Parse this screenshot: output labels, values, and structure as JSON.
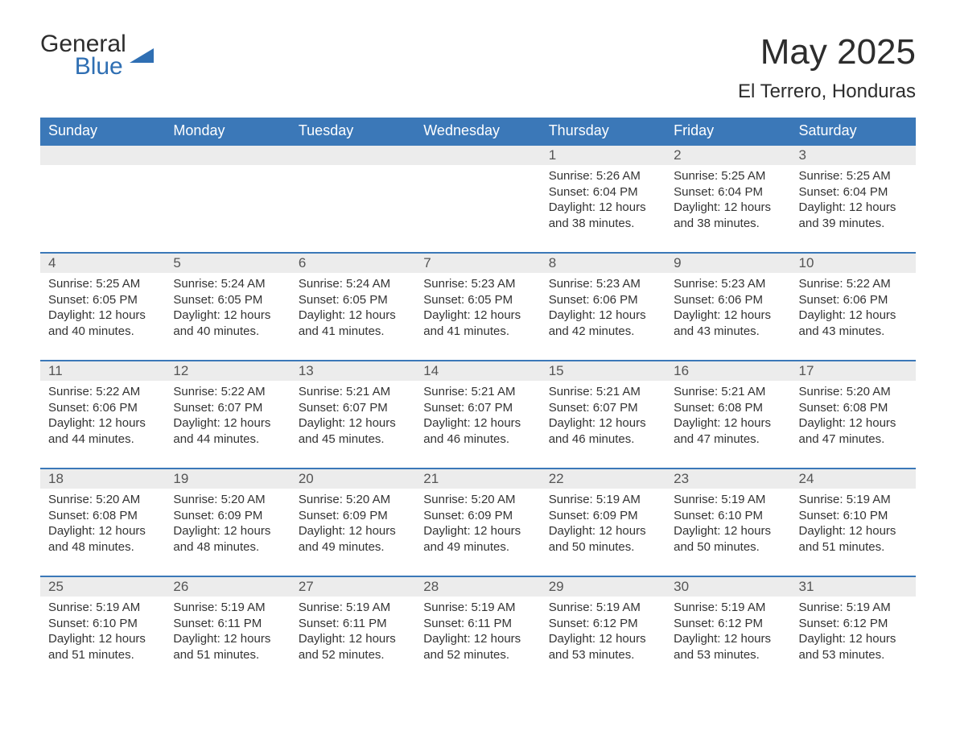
{
  "brand": {
    "word1": "General",
    "word2": "Blue",
    "word1_color": "#2d2d2d",
    "word2_color": "#2f6fb3",
    "icon_color": "#2f6fb3"
  },
  "title": "May 2025",
  "location": "El Terrero, Honduras",
  "colors": {
    "header_bg": "#3b78b8",
    "header_text": "#ffffff",
    "daynum_bg": "#ececec",
    "daynum_text": "#555555",
    "body_text": "#333333",
    "week_border": "#3b78b8",
    "page_bg": "#ffffff"
  },
  "typography": {
    "title_fontsize": 44,
    "location_fontsize": 24,
    "dayhead_fontsize": 18,
    "daynum_fontsize": 17,
    "body_fontsize": 15
  },
  "day_names": [
    "Sunday",
    "Monday",
    "Tuesday",
    "Wednesday",
    "Thursday",
    "Friday",
    "Saturday"
  ],
  "weeks": [
    [
      {
        "empty": true
      },
      {
        "empty": true
      },
      {
        "empty": true
      },
      {
        "empty": true
      },
      {
        "num": "1",
        "sunrise": "Sunrise: 5:26 AM",
        "sunset": "Sunset: 6:04 PM",
        "daylight": "Daylight: 12 hours and 38 minutes."
      },
      {
        "num": "2",
        "sunrise": "Sunrise: 5:25 AM",
        "sunset": "Sunset: 6:04 PM",
        "daylight": "Daylight: 12 hours and 38 minutes."
      },
      {
        "num": "3",
        "sunrise": "Sunrise: 5:25 AM",
        "sunset": "Sunset: 6:04 PM",
        "daylight": "Daylight: 12 hours and 39 minutes."
      }
    ],
    [
      {
        "num": "4",
        "sunrise": "Sunrise: 5:25 AM",
        "sunset": "Sunset: 6:05 PM",
        "daylight": "Daylight: 12 hours and 40 minutes."
      },
      {
        "num": "5",
        "sunrise": "Sunrise: 5:24 AM",
        "sunset": "Sunset: 6:05 PM",
        "daylight": "Daylight: 12 hours and 40 minutes."
      },
      {
        "num": "6",
        "sunrise": "Sunrise: 5:24 AM",
        "sunset": "Sunset: 6:05 PM",
        "daylight": "Daylight: 12 hours and 41 minutes."
      },
      {
        "num": "7",
        "sunrise": "Sunrise: 5:23 AM",
        "sunset": "Sunset: 6:05 PM",
        "daylight": "Daylight: 12 hours and 41 minutes."
      },
      {
        "num": "8",
        "sunrise": "Sunrise: 5:23 AM",
        "sunset": "Sunset: 6:06 PM",
        "daylight": "Daylight: 12 hours and 42 minutes."
      },
      {
        "num": "9",
        "sunrise": "Sunrise: 5:23 AM",
        "sunset": "Sunset: 6:06 PM",
        "daylight": "Daylight: 12 hours and 43 minutes."
      },
      {
        "num": "10",
        "sunrise": "Sunrise: 5:22 AM",
        "sunset": "Sunset: 6:06 PM",
        "daylight": "Daylight: 12 hours and 43 minutes."
      }
    ],
    [
      {
        "num": "11",
        "sunrise": "Sunrise: 5:22 AM",
        "sunset": "Sunset: 6:06 PM",
        "daylight": "Daylight: 12 hours and 44 minutes."
      },
      {
        "num": "12",
        "sunrise": "Sunrise: 5:22 AM",
        "sunset": "Sunset: 6:07 PM",
        "daylight": "Daylight: 12 hours and 44 minutes."
      },
      {
        "num": "13",
        "sunrise": "Sunrise: 5:21 AM",
        "sunset": "Sunset: 6:07 PM",
        "daylight": "Daylight: 12 hours and 45 minutes."
      },
      {
        "num": "14",
        "sunrise": "Sunrise: 5:21 AM",
        "sunset": "Sunset: 6:07 PM",
        "daylight": "Daylight: 12 hours and 46 minutes."
      },
      {
        "num": "15",
        "sunrise": "Sunrise: 5:21 AM",
        "sunset": "Sunset: 6:07 PM",
        "daylight": "Daylight: 12 hours and 46 minutes."
      },
      {
        "num": "16",
        "sunrise": "Sunrise: 5:21 AM",
        "sunset": "Sunset: 6:08 PM",
        "daylight": "Daylight: 12 hours and 47 minutes."
      },
      {
        "num": "17",
        "sunrise": "Sunrise: 5:20 AM",
        "sunset": "Sunset: 6:08 PM",
        "daylight": "Daylight: 12 hours and 47 minutes."
      }
    ],
    [
      {
        "num": "18",
        "sunrise": "Sunrise: 5:20 AM",
        "sunset": "Sunset: 6:08 PM",
        "daylight": "Daylight: 12 hours and 48 minutes."
      },
      {
        "num": "19",
        "sunrise": "Sunrise: 5:20 AM",
        "sunset": "Sunset: 6:09 PM",
        "daylight": "Daylight: 12 hours and 48 minutes."
      },
      {
        "num": "20",
        "sunrise": "Sunrise: 5:20 AM",
        "sunset": "Sunset: 6:09 PM",
        "daylight": "Daylight: 12 hours and 49 minutes."
      },
      {
        "num": "21",
        "sunrise": "Sunrise: 5:20 AM",
        "sunset": "Sunset: 6:09 PM",
        "daylight": "Daylight: 12 hours and 49 minutes."
      },
      {
        "num": "22",
        "sunrise": "Sunrise: 5:19 AM",
        "sunset": "Sunset: 6:09 PM",
        "daylight": "Daylight: 12 hours and 50 minutes."
      },
      {
        "num": "23",
        "sunrise": "Sunrise: 5:19 AM",
        "sunset": "Sunset: 6:10 PM",
        "daylight": "Daylight: 12 hours and 50 minutes."
      },
      {
        "num": "24",
        "sunrise": "Sunrise: 5:19 AM",
        "sunset": "Sunset: 6:10 PM",
        "daylight": "Daylight: 12 hours and 51 minutes."
      }
    ],
    [
      {
        "num": "25",
        "sunrise": "Sunrise: 5:19 AM",
        "sunset": "Sunset: 6:10 PM",
        "daylight": "Daylight: 12 hours and 51 minutes."
      },
      {
        "num": "26",
        "sunrise": "Sunrise: 5:19 AM",
        "sunset": "Sunset: 6:11 PM",
        "daylight": "Daylight: 12 hours and 51 minutes."
      },
      {
        "num": "27",
        "sunrise": "Sunrise: 5:19 AM",
        "sunset": "Sunset: 6:11 PM",
        "daylight": "Daylight: 12 hours and 52 minutes."
      },
      {
        "num": "28",
        "sunrise": "Sunrise: 5:19 AM",
        "sunset": "Sunset: 6:11 PM",
        "daylight": "Daylight: 12 hours and 52 minutes."
      },
      {
        "num": "29",
        "sunrise": "Sunrise: 5:19 AM",
        "sunset": "Sunset: 6:12 PM",
        "daylight": "Daylight: 12 hours and 53 minutes."
      },
      {
        "num": "30",
        "sunrise": "Sunrise: 5:19 AM",
        "sunset": "Sunset: 6:12 PM",
        "daylight": "Daylight: 12 hours and 53 minutes."
      },
      {
        "num": "31",
        "sunrise": "Sunrise: 5:19 AM",
        "sunset": "Sunset: 6:12 PM",
        "daylight": "Daylight: 12 hours and 53 minutes."
      }
    ]
  ]
}
